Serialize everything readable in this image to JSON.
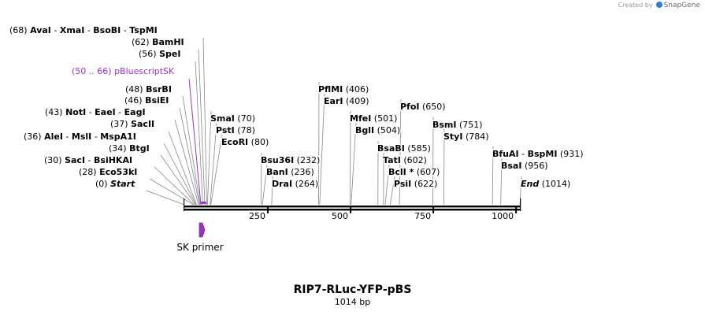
{
  "credit": {
    "text": "Created by",
    "brand": "SnapGene",
    "brand_color": "#2a7fd4"
  },
  "plasmid": {
    "name": "RIP7-RLuc-YFP-pBS",
    "length_label": "1014 bp",
    "length": 1014
  },
  "ruler": {
    "ticks": [
      250,
      500,
      750,
      1000
    ]
  },
  "sites": [
    {
      "label": "(68)  AvaI  - XmaI  - BsoBI  - TspMI",
      "names": [
        "AvaI",
        "XmaI",
        "BsoBI",
        "TspMI"
      ],
      "pos": 68,
      "pos_text": "(68)",
      "group": "left"
    },
    {
      "label": "(62)  BamHI",
      "names": [
        "BamHI"
      ],
      "pos": 62,
      "pos_text": "(62)",
      "group": "left"
    },
    {
      "label": "(56)  SpeI",
      "names": [
        "SpeI"
      ],
      "pos": 56,
      "pos_text": "(56)",
      "group": "left"
    },
    {
      "label": "(50 .. 66)  pBluescriptSK",
      "names": [
        "pBluescriptSK"
      ],
      "pos": 50,
      "pos_end": 66,
      "pos_text": "(50 .. 66)",
      "group": "left",
      "feature": true,
      "color": "#9933cc"
    },
    {
      "label": "(48)  BsrBI",
      "names": [
        "BsrBI"
      ],
      "pos": 48,
      "pos_text": "(48)",
      "group": "left"
    },
    {
      "label": "(46)  BsiEI",
      "names": [
        "BsiEI"
      ],
      "pos": 46,
      "pos_text": "(46)",
      "group": "left"
    },
    {
      "label": "(43)  NotI  - EaeI  - EagI",
      "names": [
        "NotI",
        "EaeI",
        "EagI"
      ],
      "pos": 43,
      "pos_text": "(43)",
      "group": "left"
    },
    {
      "label": "(37)  SacII",
      "names": [
        "SacII"
      ],
      "pos": 37,
      "pos_text": "(37)",
      "group": "left"
    },
    {
      "label": "(36)  AleI  - MslI  - MspA1I",
      "names": [
        "AleI",
        "MslI",
        "MspA1I"
      ],
      "pos": 36,
      "pos_text": "(36)",
      "group": "left"
    },
    {
      "label": "(34)  BtgI",
      "names": [
        "BtgI"
      ],
      "pos": 34,
      "pos_text": "(34)",
      "group": "left"
    },
    {
      "label": "(30)  SacI  - BsiHKAI",
      "names": [
        "SacI",
        "BsiHKAI"
      ],
      "pos": 30,
      "pos_text": "(30)",
      "group": "left"
    },
    {
      "label": "(28)  Eco53kI",
      "names": [
        "Eco53kI"
      ],
      "pos": 28,
      "pos_text": "(28)",
      "group": "left"
    },
    {
      "label": "(0)  Start",
      "names": [
        "Start"
      ],
      "pos": 0,
      "pos_text": "(0)",
      "group": "left",
      "italic": true
    },
    {
      "label": "SmaI  (70)",
      "names": [
        "SmaI"
      ],
      "pos": 70,
      "pos_text": "(70)",
      "group": "right"
    },
    {
      "label": "PstI  (78)",
      "names": [
        "PstI"
      ],
      "pos": 78,
      "pos_text": "(78)",
      "group": "right"
    },
    {
      "label": "EcoRI  (80)",
      "names": [
        "EcoRI"
      ],
      "pos": 80,
      "pos_text": "(80)",
      "group": "right"
    },
    {
      "label": "Bsu36I  (232)",
      "names": [
        "Bsu36I"
      ],
      "pos": 232,
      "pos_text": "(232)",
      "group": "right"
    },
    {
      "label": "BanI  (236)",
      "names": [
        "BanI"
      ],
      "pos": 236,
      "pos_text": "(236)",
      "group": "right"
    },
    {
      "label": "DraI  (264)",
      "names": [
        "DraI"
      ],
      "pos": 264,
      "pos_text": "(264)",
      "group": "right"
    },
    {
      "label": "PflMI  (406)",
      "names": [
        "PflMI"
      ],
      "pos": 406,
      "pos_text": "(406)",
      "group": "right"
    },
    {
      "label": "EarI  (409)",
      "names": [
        "EarI"
      ],
      "pos": 409,
      "pos_text": "(409)",
      "group": "right"
    },
    {
      "label": "MfeI  (501)",
      "names": [
        "MfeI"
      ],
      "pos": 501,
      "pos_text": "(501)",
      "group": "right"
    },
    {
      "label": "BglI  (504)",
      "names": [
        "BglI"
      ],
      "pos": 504,
      "pos_text": "(504)",
      "group": "right"
    },
    {
      "label": "PfoI  (650)",
      "names": [
        "PfoI"
      ],
      "pos": 650,
      "pos_text": "(650)",
      "group": "right"
    },
    {
      "label": "BsaBI  (585)",
      "names": [
        "BsaBI"
      ],
      "pos": 585,
      "pos_text": "(585)",
      "group": "right"
    },
    {
      "label": "TatI  (602)",
      "names": [
        "TatI"
      ],
      "pos": 602,
      "pos_text": "(602)",
      "group": "right"
    },
    {
      "label": "BclI *  (607)",
      "names": [
        "BclI *"
      ],
      "pos": 607,
      "pos_text": "(607)",
      "group": "right"
    },
    {
      "label": "PsiI  (622)",
      "names": [
        "PsiI"
      ],
      "pos": 622,
      "pos_text": "(622)",
      "group": "right"
    },
    {
      "label": "BsmI  (751)",
      "names": [
        "BsmI"
      ],
      "pos": 751,
      "pos_text": "(751)",
      "group": "right"
    },
    {
      "label": "StyI  (784)",
      "names": [
        "StyI"
      ],
      "pos": 784,
      "pos_text": "(784)",
      "group": "right"
    },
    {
      "label": "BfuAI  - BspMI  (931)",
      "names": [
        "BfuAI",
        "BspMI"
      ],
      "pos": 931,
      "pos_text": "(931)",
      "group": "right"
    },
    {
      "label": "BsaI  (956)",
      "names": [
        "BsaI"
      ],
      "pos": 956,
      "pos_text": "(956)",
      "group": "right"
    },
    {
      "label": "End  (1014)",
      "names": [
        "End"
      ],
      "pos": 1014,
      "pos_text": "(1014)",
      "group": "right",
      "italic": true
    }
  ],
  "primer": {
    "label": "SK primer",
    "pos": 50,
    "color": "#9933cc"
  },
  "colors": {
    "feature": "#9933cc",
    "line": "#888888",
    "text": "#000000"
  }
}
